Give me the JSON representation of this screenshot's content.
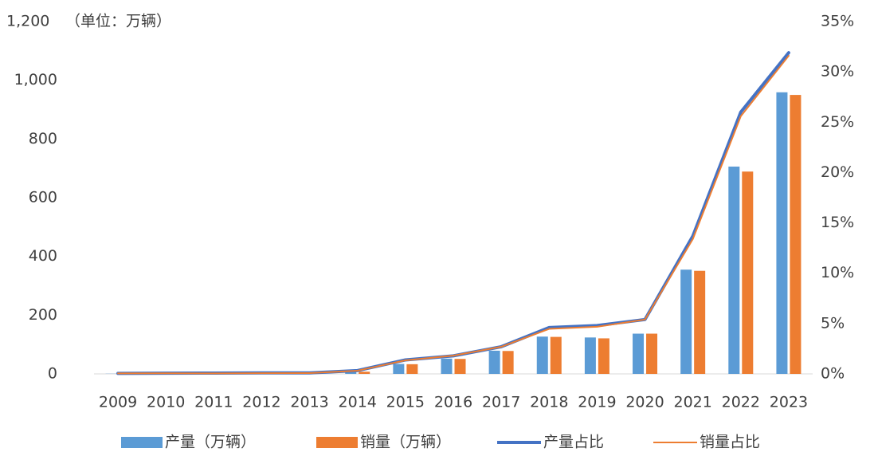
{
  "chart_data": {
    "type": "bar_line",
    "title": "（单位：万辆）",
    "categories": [
      "2009",
      "2010",
      "2011",
      "2012",
      "2013",
      "2014",
      "2015",
      "2016",
      "2017",
      "2018",
      "2019",
      "2020",
      "2021",
      "2022",
      "2023"
    ],
    "series": [
      {
        "name": "产量（万辆）",
        "type": "bar",
        "color": "#5b9bd5",
        "axis": "y",
        "values": [
          0.5,
          0.7,
          0.8,
          1.3,
          1.8,
          7.9,
          34,
          52,
          79,
          127,
          124,
          137,
          355,
          706,
          959
        ]
      },
      {
        "name": "销量（万辆）",
        "type": "bar",
        "color": "#ed7d31",
        "axis": "y",
        "values": [
          0.5,
          0.8,
          0.8,
          1.3,
          1.8,
          7.5,
          33,
          51,
          78,
          126,
          121,
          137,
          351,
          689,
          950
        ]
      },
      {
        "name": "产量占比",
        "type": "line",
        "color": "#4472c4",
        "axis": "y2",
        "values": [
          0.05,
          0.07,
          0.08,
          0.1,
          0.1,
          0.33,
          1.39,
          1.79,
          2.7,
          4.6,
          4.8,
          5.4,
          13.7,
          26,
          31.9
        ]
      },
      {
        "name": "销量占比",
        "type": "line",
        "color": "#ed7d31",
        "axis": "y2",
        "values": [
          0.05,
          0.06,
          0.05,
          0.07,
          0.08,
          0.32,
          1.35,
          1.81,
          2.69,
          4.47,
          4.68,
          5.4,
          13.4,
          25.6,
          31.6
        ]
      }
    ],
    "ylim": [
      0,
      1200
    ],
    "yticks": [
      0,
      200,
      400,
      600,
      800,
      {
        "value": 1000,
        "label": "1,000"
      },
      {
        "value": 1200,
        "label": "1,200"
      }
    ],
    "y2lim": [
      0,
      35
    ],
    "y2ticks": [
      {
        "value": 0,
        "label": "0%"
      },
      {
        "value": 5,
        "label": "5%"
      },
      {
        "value": 10,
        "label": "10%"
      },
      {
        "value": 15,
        "label": "15%"
      },
      {
        "value": 20,
        "label": "20%"
      },
      {
        "value": 25,
        "label": "25%"
      },
      {
        "value": 30,
        "label": "30%"
      },
      {
        "value": 35,
        "label": "35%"
      }
    ],
    "legend": "bottom"
  }
}
